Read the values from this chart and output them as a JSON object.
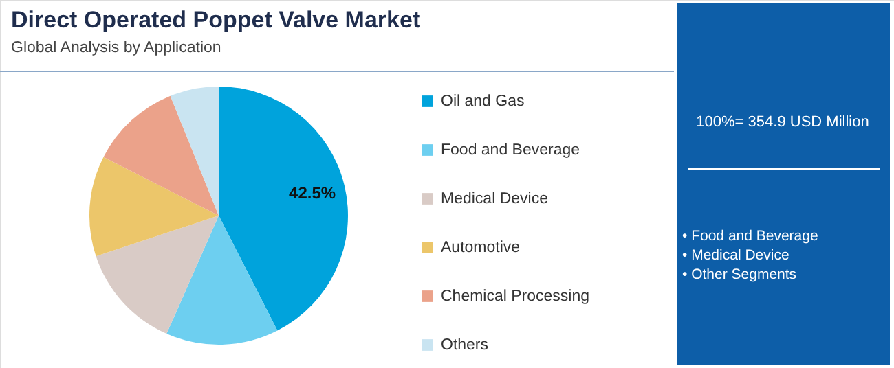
{
  "chart_data": {
    "type": "pie",
    "title": "Direct Operated Poppet Valve Market",
    "subtitle": "Global Analysis by Application",
    "categories": [
      "Oil and Gas",
      "Food and Beverage",
      "Medical Device",
      "Automotive",
      "Chemical Processing",
      "Others"
    ],
    "values": [
      42.5,
      14.1,
      13.3,
      12.6,
      11.4,
      6.1
    ],
    "colors": [
      "#00a3dc",
      "#6dcff0",
      "#d9cbc6",
      "#ecc66a",
      "#eba28a",
      "#c9e4f1"
    ],
    "value_labels": [
      "42.5%",
      null,
      null,
      null,
      null,
      null
    ],
    "legend": "right",
    "annotations": [
      "100%= 354.9 USD Million",
      "• Food and Beverage",
      "• Medical Device",
      "• Other Segments"
    ]
  }
}
